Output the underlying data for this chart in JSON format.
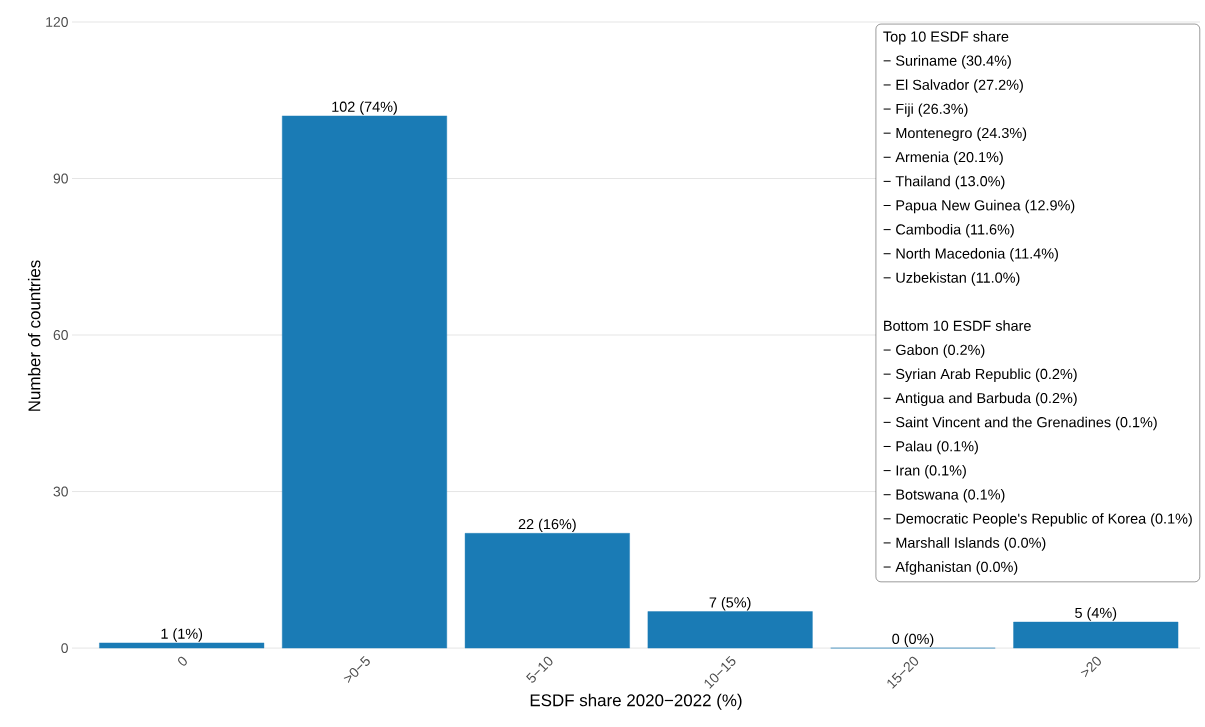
{
  "chart_data": {
    "type": "bar",
    "xlabel": "ESDF share 2020−2022 (%)",
    "ylabel": "Number of countries",
    "categories": [
      "0",
      ">0−5",
      "5−10",
      "10−15",
      "15−20",
      ">20"
    ],
    "values": [
      1,
      102,
      22,
      7,
      0,
      5
    ],
    "value_labels": [
      "1 (1%)",
      "102 (74%)",
      "22 (16%)",
      "7 (5%)",
      "0 (0%)",
      "5 (4%)"
    ],
    "color": "#1a7bb5",
    "ylim": [
      0,
      120
    ],
    "yticks": [
      0,
      30,
      60,
      90,
      120
    ],
    "grid": "y",
    "annotations": [
      "Top 10 ESDF share",
      "− Suriname (30.4%)",
      "− El Salvador (27.2%)",
      "− Fiji (26.3%)",
      "− Montenegro (24.3%)",
      "− Armenia (20.1%)",
      "− Thailand (13.0%)",
      "− Papua New Guinea (12.9%)",
      "− Cambodia (11.6%)",
      "− North Macedonia (11.4%)",
      "− Uzbekistan (11.0%)",
      "Bottom 10 ESDF share",
      "− Gabon (0.2%)",
      "− Syrian Arab Republic (0.2%)",
      "− Antigua and Barbuda (0.2%)",
      "− Saint Vincent and the Grenadines (0.1%)",
      "− Palau (0.1%)",
      "− Iran (0.1%)",
      "− Botswana (0.1%)",
      "− Democratic People's Republic of Korea (0.1%)",
      "− Marshall Islands (0.0%)",
      "− Afghanistan (0.0%)"
    ]
  }
}
